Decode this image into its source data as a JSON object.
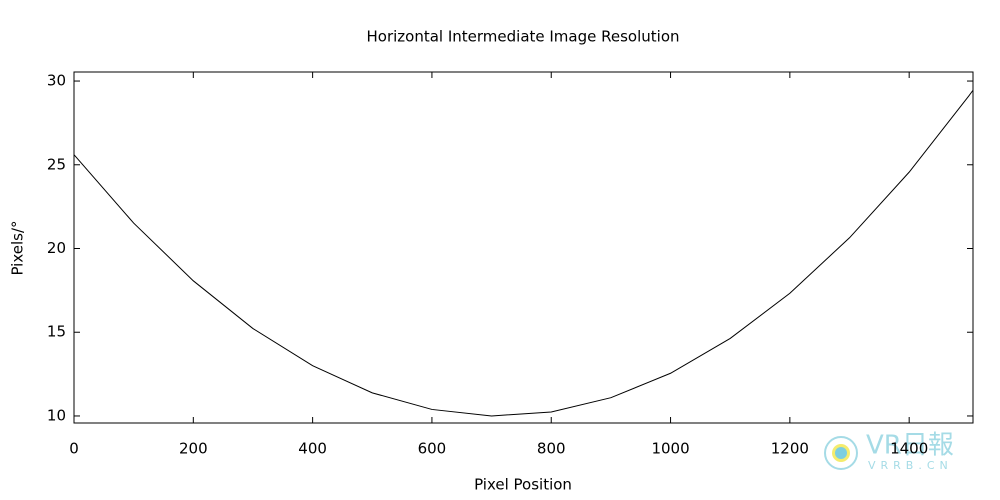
{
  "chart_data": {
    "type": "line",
    "title": "Horizontal Intermediate Image Resolution",
    "x_label": "Pixel Position",
    "y_label": "Pixels/°",
    "x": [
      0,
      100,
      200,
      300,
      400,
      500,
      600,
      700,
      800,
      900,
      1000,
      1100,
      1200,
      1300,
      1400,
      1500,
      1507
    ],
    "series": [
      {
        "color": "#000000",
        "values": [
          25.6,
          21.52,
          18.07,
          15.22,
          13.0,
          11.38,
          10.39,
          10.0,
          10.24,
          11.09,
          12.55,
          14.63,
          17.33,
          20.64,
          24.56,
          29.11,
          29.45
        ]
      }
    ],
    "xlim": [
      0,
      1507
    ],
    "ylim": [
      9.58,
      30.54
    ],
    "xticks": [
      0,
      200,
      400,
      600,
      800,
      1000,
      1200,
      1400
    ],
    "yticks": [
      10,
      15,
      20,
      25,
      30
    ],
    "grid": false
  },
  "watermark": {
    "text": "VR日報",
    "subtext": "VRRB.CN"
  }
}
